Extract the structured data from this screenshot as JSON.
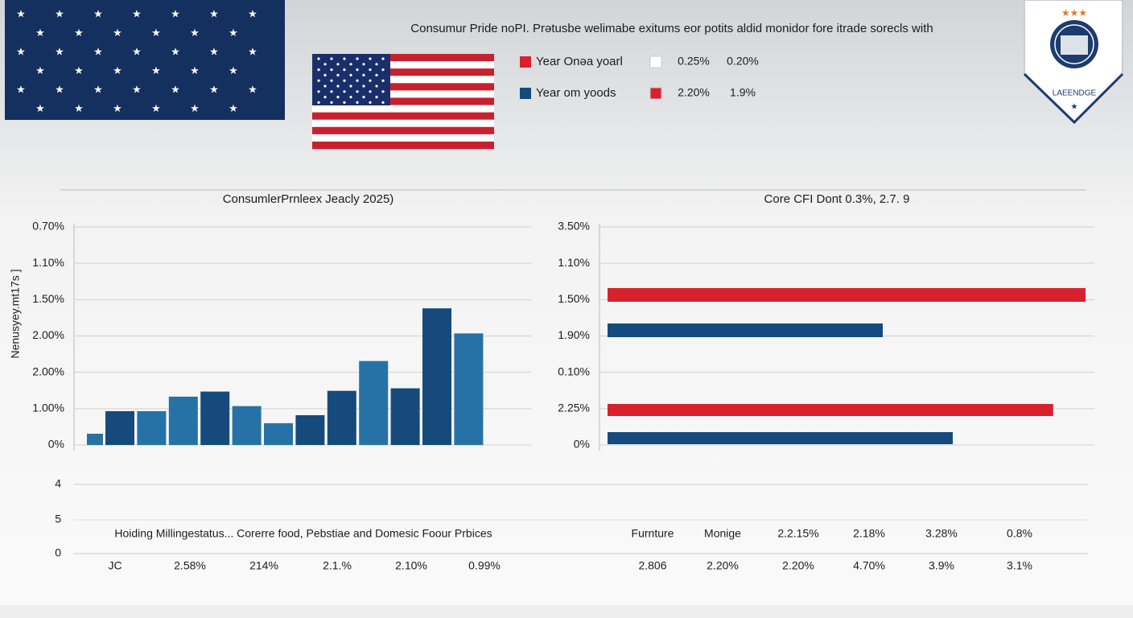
{
  "header": {
    "title": "Consumur Pride noPI. Prətusbe welimabe exitums eor potits aldid monidor fore itrade sorecls with",
    "legend": [
      {
        "label": "Year Onəa yoarl",
        "color": "#d9212e",
        "marker2": "#ffffff",
        "values": [
          "0.25%",
          "0.20%"
        ]
      },
      {
        "label": "Year om yoods",
        "color": "#154a7e",
        "marker2": "#d9212e",
        "values": [
          "2.20%",
          "1.9%"
        ]
      }
    ],
    "badge": "LAEENDGE"
  },
  "chart_data": [
    {
      "type": "bar",
      "title": "ConsumlerPrnleex Jeacly 2025)",
      "y_label": "Nenusyey.mt17s ]",
      "ylim": [
        0,
        6
      ],
      "yticks": [
        {
          "value": 0,
          "label": "0%"
        },
        {
          "value": 1,
          "label": "1.00%"
        },
        {
          "value": 2,
          "label": "2.00%"
        },
        {
          "value": 3,
          "label": "2.00%"
        },
        {
          "value": 4,
          "label": "1.50%"
        },
        {
          "value": 5,
          "label": "1.10%"
        },
        {
          "value": 6,
          "label": "0.70%"
        }
      ],
      "values": [
        0.31,
        0.93,
        0.93,
        1.33,
        1.47,
        1.07,
        0.6,
        0.82,
        1.49,
        2.31,
        1.56,
        3.76,
        3.07
      ],
      "colors": [
        "#2a70a5",
        "#164a7d",
        "#2672a6",
        "#2672a6",
        "#164a7d",
        "#2672a6",
        "#2672a6",
        "#164a7d",
        "#164a7d",
        "#2672a6",
        "#164a7d",
        "#164a7d",
        "#2672a6"
      ],
      "lower_ticks": [
        4,
        5,
        0
      ],
      "rows": [
        [
          "Hoiding Millingestatus... Corerre food, Pebstiae and Domesic Foour Prbices"
        ],
        [
          "JC",
          "2.58%",
          "214%",
          "2.1.%",
          "2.10%",
          "0.99%"
        ]
      ]
    },
    {
      "type": "hbar",
      "title": "Core CFI Dont  0.3%, 2.7.  9",
      "ylim": [
        0,
        6
      ],
      "yticks": [
        {
          "value": 0,
          "label": "0%"
        },
        {
          "value": 1,
          "label": "2.25%"
        },
        {
          "value": 2,
          "label": "0.10%"
        },
        {
          "value": 3,
          "label": "1.90%"
        },
        {
          "value": 4,
          "label": "1.50%"
        },
        {
          "value": 5,
          "label": "1.10%"
        },
        {
          "value": 6,
          "label": "3.50%"
        }
      ],
      "xlim": [
        0,
        100
      ],
      "values": [
        99,
        57,
        92.3,
        71.5
      ],
      "colors": [
        "#d9212e",
        "#154a7e",
        "#d9212e",
        "#154a7e"
      ],
      "rows": [
        [
          "Furnture",
          "Monige",
          "2.2.15%",
          "2.18%",
          "3.28%",
          "0.8%"
        ],
        [
          "2.806",
          "2.20%",
          "2.20%",
          "4.70%",
          "3.9%",
          "3.1%"
        ]
      ]
    }
  ]
}
